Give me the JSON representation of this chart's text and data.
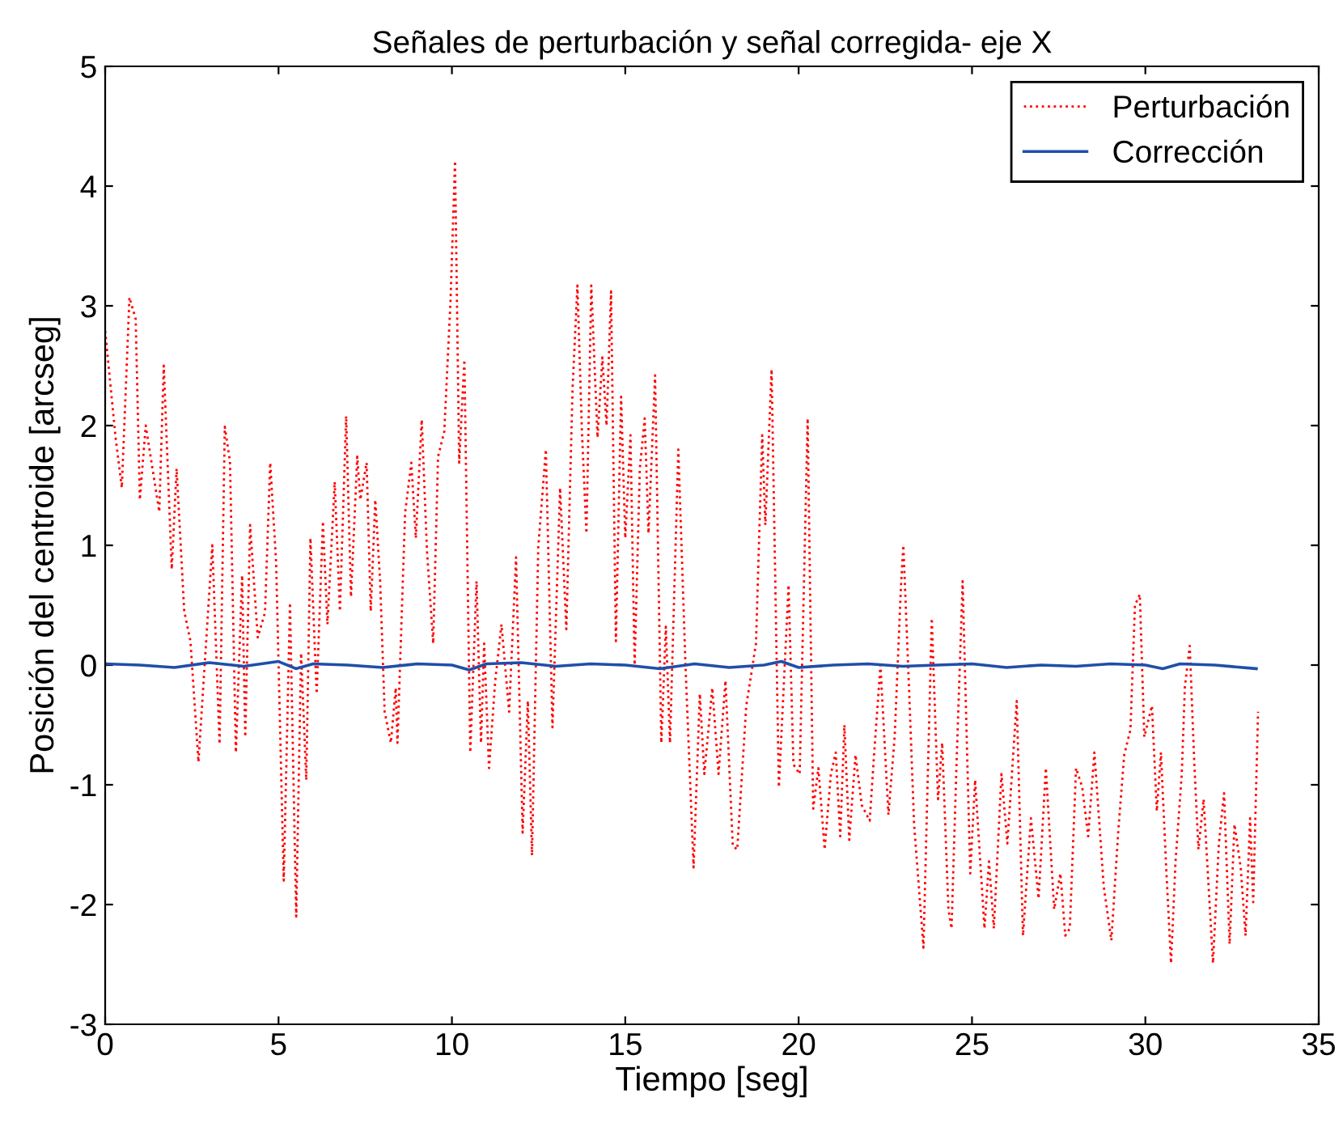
{
  "chart_data": {
    "type": "line",
    "title": "Señales de perturbación y señal corregida- eje X",
    "xlabel": "Tiempo [seg]",
    "ylabel": "Posición del centroide [arcseg]",
    "xlim": [
      0,
      35
    ],
    "xticks": [
      0,
      5,
      10,
      15,
      20,
      25,
      30,
      35
    ],
    "ylim": [
      -3,
      5
    ],
    "yticks": [
      -3,
      -2,
      -1,
      0,
      1,
      2,
      3,
      4,
      5
    ],
    "grid": false,
    "legend": "top right",
    "series": [
      {
        "name": "Perturbación",
        "color": "#ff0000",
        "line_style": "dotted",
        "x": [
          0,
          0.3,
          0.48,
          0.7,
          0.88,
          1.0,
          1.17,
          1.56,
          1.69,
          1.92,
          2.06,
          2.28,
          2.46,
          2.69,
          3.09,
          3.3,
          3.45,
          3.6,
          3.77,
          3.95,
          4.04,
          4.18,
          4.4,
          4.61,
          4.76,
          4.93,
          5.15,
          5.33,
          5.51,
          5.65,
          5.8,
          5.92,
          6.1,
          6.28,
          6.41,
          6.62,
          6.77,
          6.95,
          7.09,
          7.27,
          7.36,
          7.54,
          7.66,
          7.79,
          7.93,
          8.06,
          8.24,
          8.38,
          8.43,
          8.65,
          8.83,
          8.96,
          9.13,
          9.28,
          9.46,
          9.6,
          9.78,
          9.96,
          10.09,
          10.21,
          10.36,
          10.53,
          10.71,
          10.84,
          10.93,
          11.07,
          11.25,
          11.43,
          11.65,
          11.85,
          12.04,
          12.19,
          12.31,
          12.49,
          12.71,
          12.9,
          13.12,
          13.3,
          13.48,
          13.62,
          13.75,
          13.88,
          14.02,
          14.2,
          14.34,
          14.46,
          14.59,
          14.73,
          14.88,
          15.0,
          15.15,
          15.27,
          15.42,
          15.56,
          15.67,
          15.86,
          16.04,
          16.17,
          16.29,
          16.53,
          16.74,
          16.97,
          17.15,
          17.28,
          17.51,
          17.69,
          17.89,
          18.1,
          18.23,
          18.49,
          18.77,
          18.95,
          19.04,
          19.22,
          19.43,
          19.71,
          19.85,
          20.03,
          20.26,
          20.42,
          20.57,
          20.75,
          20.93,
          21.07,
          21.2,
          21.32,
          21.46,
          21.64,
          21.82,
          22.05,
          22.18,
          22.36,
          22.59,
          22.77,
          22.95,
          23.02,
          23.19,
          23.33,
          23.6,
          23.84,
          24.02,
          24.14,
          24.32,
          24.41,
          24.55,
          24.73,
          24.95,
          25.09,
          25.36,
          25.49,
          25.63,
          25.85,
          26.02,
          26.29,
          26.47,
          26.7,
          26.92,
          27.13,
          27.37,
          27.55,
          27.69,
          27.82,
          28.0,
          28.18,
          28.35,
          28.53,
          28.8,
          29.02,
          29.22,
          29.39,
          29.57,
          29.7,
          29.84,
          29.97,
          30.19,
          30.33,
          30.45,
          30.6,
          30.74,
          30.87,
          31.05,
          31.14,
          31.28,
          31.41,
          31.53,
          31.68,
          31.95,
          32.12,
          32.27,
          32.43,
          32.57,
          32.75,
          32.89,
          33.02,
          33.11,
          33.25
        ],
        "values": [
          2.79,
          1.9,
          1.48,
          3.07,
          2.89,
          1.38,
          2.0,
          1.28,
          2.5,
          0.8,
          1.64,
          0.45,
          0.2,
          -0.81,
          1.0,
          -0.66,
          1.99,
          1.7,
          -0.73,
          0.75,
          -0.6,
          1.17,
          0.23,
          0.44,
          1.69,
          0.86,
          -1.8,
          0.52,
          -2.1,
          0.1,
          -0.96,
          1.06,
          -0.24,
          1.2,
          0.34,
          1.53,
          0.45,
          2.08,
          0.57,
          1.74,
          1.38,
          1.69,
          0.45,
          1.38,
          0.7,
          -0.39,
          -0.65,
          -0.19,
          -0.65,
          1.27,
          1.69,
          1.06,
          2.05,
          0.96,
          0.18,
          1.74,
          1.95,
          3.04,
          4.21,
          1.69,
          2.55,
          -0.73,
          0.7,
          -0.65,
          0.18,
          -0.86,
          -0.13,
          0.34,
          -0.39,
          0.9,
          -1.4,
          -0.3,
          -1.59,
          0.98,
          1.8,
          -0.52,
          1.48,
          0.3,
          2.31,
          3.17,
          1.95,
          1.1,
          3.17,
          1.9,
          2.57,
          2.0,
          3.12,
          0.2,
          2.24,
          1.06,
          1.92,
          0.0,
          1.64,
          2.06,
          1.1,
          2.42,
          -0.65,
          0.32,
          -0.65,
          1.8,
          -0.03,
          -1.69,
          -0.24,
          -0.91,
          -0.19,
          -0.91,
          -0.13,
          -1.51,
          -1.54,
          -0.34,
          0.18,
          1.92,
          1.17,
          2.47,
          -1.02,
          0.67,
          -0.83,
          -0.91,
          2.06,
          -1.2,
          -0.86,
          -1.54,
          -0.91,
          -0.73,
          -1.43,
          -0.5,
          -1.46,
          -0.75,
          -1.17,
          -1.3,
          -0.73,
          0.0,
          -1.25,
          -0.6,
          0.65,
          1.0,
          -0.24,
          -1.33,
          -2.36,
          0.39,
          -1.12,
          -0.65,
          -2.04,
          -2.2,
          -0.86,
          0.7,
          -1.74,
          -0.96,
          -2.2,
          -1.64,
          -2.2,
          -0.91,
          -1.49,
          -0.3,
          -2.26,
          -1.28,
          -1.95,
          -0.86,
          -2.04,
          -1.74,
          -2.26,
          -2.2,
          -0.86,
          -1.02,
          -1.43,
          -0.73,
          -1.85,
          -2.3,
          -1.38,
          -0.75,
          -0.54,
          0.5,
          0.59,
          -0.6,
          -0.34,
          -1.22,
          -0.73,
          -1.69,
          -2.49,
          -1.64,
          -0.91,
          -0.18,
          0.16,
          -0.81,
          -1.54,
          -1.12,
          -2.49,
          -1.49,
          -1.07,
          -2.33,
          -1.33,
          -1.69,
          -2.26,
          -1.28,
          -1.98,
          -0.39
        ]
      },
      {
        "name": "Corrección",
        "color": "#1f4fa8",
        "line_style": "solid",
        "x": [
          0,
          1,
          2,
          3,
          4,
          5,
          5.5,
          6,
          7,
          8,
          9,
          10,
          10.5,
          11,
          12,
          13,
          14,
          15,
          16,
          17,
          18,
          19,
          19.5,
          20,
          21,
          22,
          23,
          24,
          25,
          26,
          27,
          28,
          29,
          30,
          30.5,
          31,
          32,
          33.2
        ],
        "values": [
          0.01,
          0.0,
          -0.02,
          0.02,
          -0.01,
          0.03,
          -0.03,
          0.01,
          0.0,
          -0.02,
          0.01,
          0.0,
          -0.04,
          0.01,
          0.02,
          -0.01,
          0.01,
          0.0,
          -0.03,
          0.01,
          -0.02,
          0.0,
          0.03,
          -0.02,
          0.0,
          0.01,
          -0.01,
          0.0,
          0.01,
          -0.02,
          0.0,
          -0.01,
          0.01,
          0.0,
          -0.03,
          0.01,
          0.0,
          -0.03
        ]
      }
    ]
  }
}
